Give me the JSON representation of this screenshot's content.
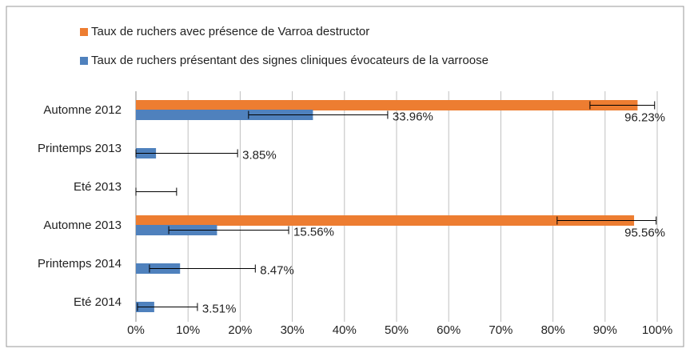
{
  "chart_data": {
    "type": "bar",
    "orientation": "horizontal",
    "categories": [
      "Automne 2012",
      "Printemps 2013",
      "Eté 2013",
      "Automne 2013",
      "Printemps 2014",
      "Eté 2014"
    ],
    "series": [
      {
        "name": "Taux de ruchers avec présence de Varroa destructor",
        "color": "#ed7d31",
        "values": [
          96.23,
          null,
          null,
          95.56,
          null,
          null
        ],
        "value_labels": [
          "96.23%",
          null,
          null,
          "95.56%",
          null,
          null
        ],
        "error_low": [
          87.1,
          null,
          null,
          80.8,
          null,
          null
        ],
        "error_high": [
          99.5,
          null,
          null,
          99.8,
          null,
          null
        ]
      },
      {
        "name": "Taux de ruchers présentant des signes cliniques évocateurs de la varroose",
        "color": "#4f81bd",
        "values": [
          33.96,
          3.85,
          0,
          15.56,
          8.47,
          3.51
        ],
        "value_labels": [
          "33.96%",
          "3.85%",
          null,
          "15.56%",
          "8.47%",
          "3.51%"
        ],
        "error_low": [
          21.6,
          0,
          0,
          6.3,
          2.6,
          0.3
        ],
        "error_high": [
          48.3,
          19.5,
          7.8,
          29.3,
          22.9,
          11.8
        ]
      }
    ],
    "xlim": [
      0,
      100
    ],
    "xticks": [
      {
        "value": 0,
        "label": "0%"
      },
      {
        "value": 10,
        "label": "10%"
      },
      {
        "value": 20,
        "label": "20%"
      },
      {
        "value": 30,
        "label": "30%"
      },
      {
        "value": 40,
        "label": "40%"
      },
      {
        "value": 50,
        "label": "50%"
      },
      {
        "value": 60,
        "label": "60%"
      },
      {
        "value": 70,
        "label": "70%"
      },
      {
        "value": 80,
        "label": "80%"
      },
      {
        "value": 90,
        "label": "90%"
      },
      {
        "value": 100,
        "label": "100%"
      }
    ],
    "grid": true,
    "legend": "top"
  }
}
